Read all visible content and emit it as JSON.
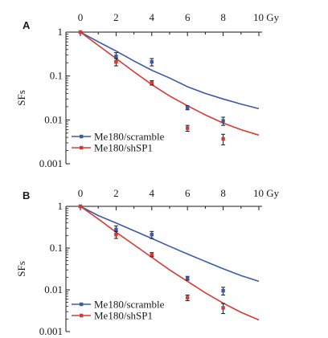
{
  "chart_data": [
    {
      "type": "scatter",
      "panel_label": "A",
      "x_ticks": [
        "0",
        "2",
        "4",
        "6",
        "8"
      ],
      "x_last_tick": "10 Gy",
      "xlim": [
        0,
        10
      ],
      "y_scale": "log",
      "ylim": [
        0.001,
        1
      ],
      "y_ticks": [
        "1",
        "0.1",
        "0.01",
        "0.001"
      ],
      "ylabel": "SFs",
      "legend_position": "bottom-left",
      "series": [
        {
          "name": "Me180/scramble",
          "color": "#3b5aa8",
          "points": [
            [
              0,
              1
            ],
            [
              2,
              0.28
            ],
            [
              4,
              0.21
            ],
            [
              6,
              0.019
            ],
            [
              8,
              0.0095
            ]
          ],
          "errors": [
            0,
            0.06,
            0.04,
            0.002,
            0.002
          ],
          "fit": [
            [
              0,
              1
            ],
            [
              1,
              0.6
            ],
            [
              2,
              0.37
            ],
            [
              3,
              0.22
            ],
            [
              4,
              0.135
            ],
            [
              5,
              0.09
            ],
            [
              6,
              0.057
            ],
            [
              7,
              0.04
            ],
            [
              8,
              0.03
            ],
            [
              9,
              0.023
            ],
            [
              10,
              0.018
            ]
          ]
        },
        {
          "name": "Me180/shSP1",
          "color": "#d63a35",
          "points": [
            [
              0,
              1
            ],
            [
              2,
              0.21
            ],
            [
              4,
              0.07
            ],
            [
              6,
              0.0065
            ],
            [
              8,
              0.0037
            ]
          ],
          "errors": [
            0,
            0.04,
            0.008,
            0.001,
            0.001
          ],
          "fit": [
            [
              0,
              1
            ],
            [
              1,
              0.5
            ],
            [
              2,
              0.25
            ],
            [
              3,
              0.125
            ],
            [
              4,
              0.064
            ],
            [
              5,
              0.035
            ],
            [
              6,
              0.021
            ],
            [
              7,
              0.013
            ],
            [
              8,
              0.0085
            ],
            [
              9,
              0.006
            ],
            [
              10,
              0.0045
            ]
          ]
        }
      ]
    },
    {
      "type": "scatter",
      "panel_label": "B",
      "x_ticks": [
        "0",
        "2",
        "4",
        "6",
        "8"
      ],
      "x_last_tick": "10 Gy",
      "xlim": [
        0,
        10
      ],
      "y_scale": "log",
      "ylim": [
        0.001,
        1
      ],
      "y_ticks": [
        "1",
        "0.1",
        "0.01",
        "0.001"
      ],
      "ylabel": "SFs",
      "legend_position": "bottom-left",
      "series": [
        {
          "name": "Me180/scramble",
          "color": "#3b5aa8",
          "points": [
            [
              0,
              1
            ],
            [
              2,
              0.28
            ],
            [
              4,
              0.21
            ],
            [
              6,
              0.019
            ],
            [
              8,
              0.0095
            ]
          ],
          "errors": [
            0,
            0.06,
            0.04,
            0.002,
            0.002
          ],
          "fit": [
            [
              0,
              1
            ],
            [
              1,
              0.6
            ],
            [
              2,
              0.4
            ],
            [
              3,
              0.26
            ],
            [
              4,
              0.17
            ],
            [
              5,
              0.11
            ],
            [
              6,
              0.072
            ],
            [
              7,
              0.048
            ],
            [
              8,
              0.032
            ],
            [
              9,
              0.022
            ],
            [
              10,
              0.016
            ]
          ]
        },
        {
          "name": "Me180/shSP1",
          "color": "#d63a35",
          "points": [
            [
              0,
              1
            ],
            [
              2,
              0.21
            ],
            [
              4,
              0.07
            ],
            [
              6,
              0.0065
            ],
            [
              8,
              0.0037
            ]
          ],
          "errors": [
            0,
            0.04,
            0.008,
            0.001,
            0.001
          ],
          "fit": [
            [
              0,
              1
            ],
            [
              1,
              0.5
            ],
            [
              2,
              0.24
            ],
            [
              3,
              0.12
            ],
            [
              4,
              0.06
            ],
            [
              5,
              0.03
            ],
            [
              6,
              0.016
            ],
            [
              7,
              0.0085
            ],
            [
              8,
              0.0048
            ],
            [
              9,
              0.0029
            ],
            [
              10,
              0.0019
            ]
          ]
        }
      ]
    }
  ]
}
